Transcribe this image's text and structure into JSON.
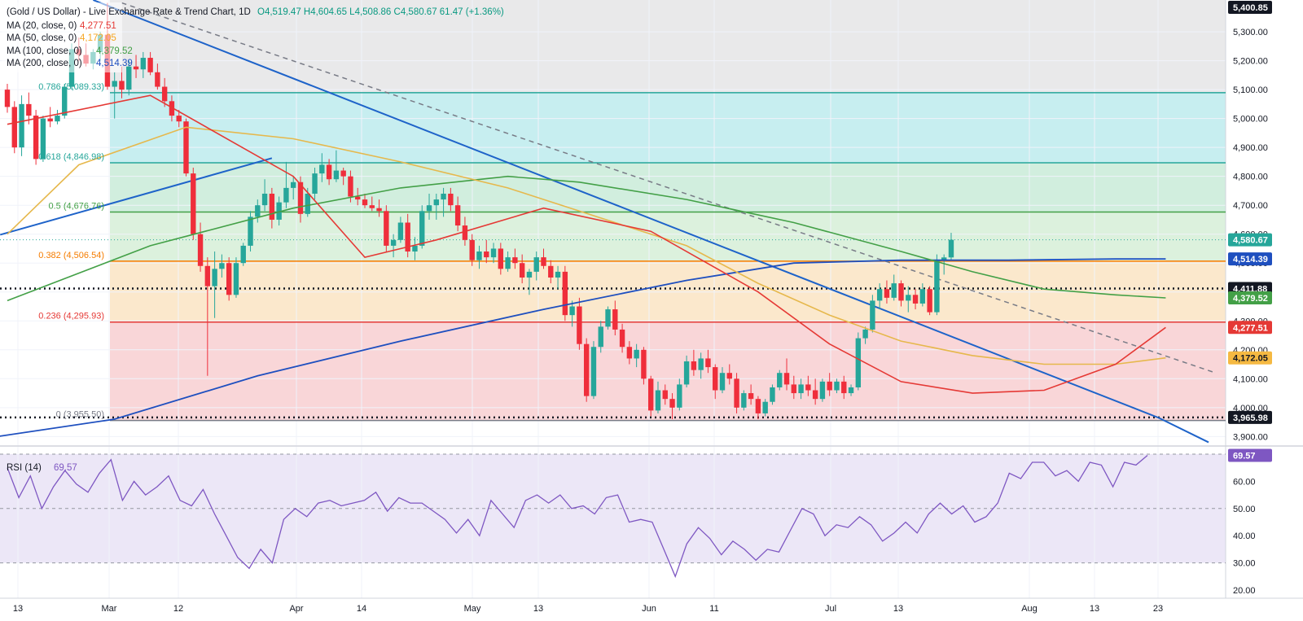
{
  "legend": {
    "title": "(Gold / US Dollar) - Live Exchange Rate & Trend Chart, 1D",
    "ohlc": "O4,519.47  H4,604.65  L4,508.86  C4,580.67  61.47 (+1.36%)",
    "ma20": {
      "label": "MA (20, close, 0)",
      "value": "4,277.51",
      "color": "#e53935"
    },
    "ma50": {
      "label": "MA (50, close, 0)",
      "value": "4,172.05",
      "color": "#f5a623"
    },
    "ma100": {
      "label": "MA (100, close, 0)",
      "value": "4,379.52",
      "color": "#43a047"
    },
    "ma200": {
      "label": "MA (200, close, 0)",
      "value": "4,514.39",
      "color": "#1e4fbf"
    }
  },
  "rsi_label": "RSI (14)",
  "rsi_value": "69.57",
  "chart_data": [
    {
      "type": "candlestick",
      "title": "(Gold / US Dollar) - Live Exchange Rate & Trend Chart, 1D",
      "x_ticks": [
        "13",
        "Mar",
        "12",
        "Apr",
        "14",
        "May",
        "13",
        "Jun",
        "11",
        "Jul",
        "13",
        "Aug",
        "13",
        "23"
      ],
      "y_ticks": [
        "3,900.00",
        "4,000.00",
        "4,100.00",
        "4,200.00",
        "4,300.00",
        "4,400.00",
        "4,500.00",
        "4,600.00",
        "4,700.00",
        "4,800.00",
        "4,900.00",
        "5,000.00",
        "5,100.00",
        "5,200.00",
        "5,300.00"
      ],
      "ylim": [
        3870,
        5410
      ],
      "last_ohlc": {
        "open": 4519.47,
        "high": 4604.65,
        "low": 4508.86,
        "close": 4580.67,
        "change": 61.47,
        "change_pct": "+1.36%"
      },
      "fib_levels": [
        {
          "label": "0.786 (5,089.33)",
          "value": 5089.33,
          "color": "#26a69a"
        },
        {
          "label": "0.618 (4,846.98)",
          "value": 4846.98,
          "color": "#26a69a"
        },
        {
          "label": "0.5 (4,676.76)",
          "value": 4676.76,
          "color": "#43a047"
        },
        {
          "label": "0.382 (4,506.54)",
          "value": 4506.54,
          "color": "#f57c00"
        },
        {
          "label": "0.236 (4,295.93)",
          "value": 4295.93,
          "color": "#e53935"
        },
        {
          "label": "0 (3,955.50)",
          "value": 3955.5,
          "color": "#787b86"
        }
      ],
      "horizontal_lines": [
        4411.88,
        3965.98
      ],
      "price_tags": [
        {
          "label": "5,400.85",
          "value": 5400.85,
          "bg": "#131722",
          "fg": "#ffffff"
        },
        {
          "label": "4,580.67",
          "value": 4580.67,
          "bg": "#26a69a",
          "fg": "#ffffff"
        },
        {
          "label": "4,514.39",
          "value": 4514.39,
          "bg": "#1e4fbf",
          "fg": "#ffffff"
        },
        {
          "label": "4,411.88",
          "value": 4411.88,
          "bg": "#131722",
          "fg": "#ffffff"
        },
        {
          "label": "4,379.52",
          "value": 4379.52,
          "bg": "#43a047",
          "fg": "#ffffff"
        },
        {
          "label": "4,277.51",
          "value": 4277.51,
          "bg": "#e53935",
          "fg": "#ffffff"
        },
        {
          "label": "4,172.05",
          "value": 4172.05,
          "bg": "#f5b942",
          "fg": "#131722"
        },
        {
          "label": "3,965.98",
          "value": 3965.98,
          "bg": "#131722",
          "fg": "#ffffff"
        }
      ],
      "candles": [
        [
          5100,
          5120,
          5020,
          5040
        ],
        [
          5040,
          5060,
          4880,
          4900
        ],
        [
          4900,
          5080,
          4870,
          5050
        ],
        [
          5050,
          5090,
          4980,
          5010
        ],
        [
          5010,
          5030,
          4840,
          4860
        ],
        [
          4860,
          5010,
          4850,
          5000
        ],
        [
          5000,
          5040,
          4970,
          4990
        ],
        [
          4990,
          5030,
          4980,
          5010
        ],
        [
          5010,
          5120,
          5000,
          5110
        ],
        [
          5110,
          5260,
          5100,
          5240
        ],
        [
          5240,
          5280,
          5200,
          5220
        ],
        [
          5220,
          5260,
          5180,
          5190
        ],
        [
          5190,
          5240,
          5170,
          5230
        ],
        [
          5230,
          5300,
          5200,
          5290
        ],
        [
          5290,
          5400,
          5100,
          5110
        ],
        [
          5110,
          5160,
          5000,
          5130
        ],
        [
          5130,
          5180,
          5070,
          5100
        ],
        [
          5100,
          5200,
          5080,
          5180
        ],
        [
          5180,
          5220,
          5140,
          5170
        ],
        [
          5170,
          5230,
          5140,
          5210
        ],
        [
          5210,
          5230,
          5150,
          5160
        ],
        [
          5160,
          5190,
          5100,
          5110
        ],
        [
          5110,
          5140,
          5040,
          5060
        ],
        [
          5060,
          5080,
          4990,
          5010
        ],
        [
          5010,
          5030,
          4970,
          4990
        ],
        [
          4990,
          5000,
          4800,
          4810
        ],
        [
          4810,
          4830,
          4580,
          4600
        ],
        [
          4600,
          4640,
          4470,
          4490
        ],
        [
          4490,
          4520,
          4110,
          4420
        ],
        [
          4420,
          4540,
          4310,
          4480
        ],
        [
          4480,
          4530,
          4450,
          4500
        ],
        [
          4500,
          4520,
          4370,
          4390
        ],
        [
          4390,
          4520,
          4380,
          4500
        ],
        [
          4500,
          4570,
          4490,
          4560
        ],
        [
          4560,
          4680,
          4540,
          4660
        ],
        [
          4660,
          4720,
          4640,
          4700
        ],
        [
          4700,
          4790,
          4680,
          4740
        ],
        [
          4740,
          4760,
          4620,
          4650
        ],
        [
          4650,
          4730,
          4630,
          4710
        ],
        [
          4710,
          4850,
          4690,
          4760
        ],
        [
          4760,
          4800,
          4720,
          4780
        ],
        [
          4780,
          4800,
          4640,
          4670
        ],
        [
          4670,
          4760,
          4660,
          4740
        ],
        [
          4740,
          4830,
          4720,
          4810
        ],
        [
          4810,
          4880,
          4780,
          4840
        ],
        [
          4840,
          4860,
          4770,
          4790
        ],
        [
          4790,
          4890,
          4780,
          4820
        ],
        [
          4820,
          4830,
          4770,
          4800
        ],
        [
          4800,
          4820,
          4710,
          4730
        ],
        [
          4730,
          4760,
          4700,
          4720
        ],
        [
          4720,
          4740,
          4690,
          4700
        ],
        [
          4700,
          4730,
          4680,
          4690
        ],
        [
          4690,
          4720,
          4660,
          4680
        ],
        [
          4680,
          4700,
          4540,
          4560
        ],
        [
          4560,
          4600,
          4520,
          4580
        ],
        [
          4580,
          4660,
          4570,
          4640
        ],
        [
          4640,
          4670,
          4520,
          4540
        ],
        [
          4540,
          4590,
          4510,
          4560
        ],
        [
          4560,
          4700,
          4550,
          4680
        ],
        [
          4680,
          4740,
          4650,
          4700
        ],
        [
          4700,
          4740,
          4650,
          4720
        ],
        [
          4720,
          4760,
          4660,
          4740
        ],
        [
          4740,
          4760,
          4680,
          4700
        ],
        [
          4700,
          4730,
          4610,
          4630
        ],
        [
          4630,
          4660,
          4560,
          4580
        ],
        [
          4580,
          4600,
          4490,
          4510
        ],
        [
          4510,
          4560,
          4480,
          4540
        ],
        [
          4540,
          4580,
          4500,
          4520
        ],
        [
          4520,
          4570,
          4500,
          4550
        ],
        [
          4550,
          4570,
          4460,
          4480
        ],
        [
          4480,
          4540,
          4470,
          4520
        ],
        [
          4520,
          4550,
          4480,
          4500
        ],
        [
          4500,
          4530,
          4430,
          4450
        ],
        [
          4450,
          4480,
          4390,
          4470
        ],
        [
          4470,
          4540,
          4440,
          4520
        ],
        [
          4520,
          4550,
          4480,
          4490
        ],
        [
          4490,
          4510,
          4430,
          4450
        ],
        [
          4450,
          4490,
          4410,
          4470
        ],
        [
          4470,
          4490,
          4300,
          4320
        ],
        [
          4320,
          4370,
          4280,
          4350
        ],
        [
          4350,
          4380,
          4200,
          4220
        ],
        [
          4220,
          4240,
          4020,
          4040
        ],
        [
          4040,
          4230,
          4030,
          4210
        ],
        [
          4210,
          4300,
          4190,
          4280
        ],
        [
          4280,
          4350,
          4270,
          4340
        ],
        [
          4340,
          4370,
          4250,
          4270
        ],
        [
          4270,
          4290,
          4190,
          4210
        ],
        [
          4210,
          4230,
          4150,
          4170
        ],
        [
          4170,
          4220,
          4140,
          4200
        ],
        [
          4200,
          4210,
          4080,
          4100
        ],
        [
          4100,
          4110,
          3970,
          3990
        ],
        [
          3990,
          4090,
          3980,
          4060
        ],
        [
          4060,
          4080,
          4010,
          4030
        ],
        [
          4030,
          4050,
          3960,
          4000
        ],
        [
          4000,
          4100,
          3990,
          4080
        ],
        [
          4080,
          4180,
          4070,
          4160
        ],
        [
          4160,
          4200,
          4110,
          4130
        ],
        [
          4130,
          4190,
          4100,
          4170
        ],
        [
          4170,
          4200,
          4120,
          4140
        ],
        [
          4140,
          4150,
          4030,
          4060
        ],
        [
          4060,
          4140,
          4050,
          4120
        ],
        [
          4120,
          4150,
          4080,
          4100
        ],
        [
          4100,
          4120,
          3980,
          4000
        ],
        [
          4000,
          4060,
          3990,
          4050
        ],
        [
          4050,
          4080,
          4010,
          4030
        ],
        [
          4030,
          4040,
          3960,
          3980
        ],
        [
          3980,
          4030,
          3970,
          4020
        ],
        [
          4020,
          4080,
          4010,
          4070
        ],
        [
          4070,
          4130,
          4060,
          4120
        ],
        [
          4120,
          4170,
          4060,
          4080
        ],
        [
          4080,
          4110,
          4030,
          4050
        ],
        [
          4050,
          4100,
          4030,
          4080
        ],
        [
          4080,
          4110,
          4040,
          4060
        ],
        [
          4060,
          4100,
          4010,
          4030
        ],
        [
          4030,
          4100,
          4020,
          4090
        ],
        [
          4090,
          4120,
          4040,
          4060
        ],
        [
          4060,
          4100,
          4050,
          4090
        ],
        [
          4090,
          4110,
          4030,
          4050
        ],
        [
          4050,
          4080,
          4040,
          4070
        ],
        [
          4070,
          4260,
          4060,
          4240
        ],
        [
          4240,
          4280,
          4220,
          4270
        ],
        [
          4270,
          4390,
          4260,
          4370
        ],
        [
          4370,
          4430,
          4340,
          4410
        ],
        [
          4410,
          4440,
          4360,
          4380
        ],
        [
          4380,
          4460,
          4370,
          4430
        ],
        [
          4430,
          4440,
          4350,
          4370
        ],
        [
          4370,
          4420,
          4330,
          4390
        ],
        [
          4390,
          4410,
          4340,
          4360
        ],
        [
          4360,
          4430,
          4350,
          4410
        ],
        [
          4410,
          4420,
          4320,
          4330
        ],
        [
          4330,
          4530,
          4320,
          4510
        ],
        [
          4510,
          4530,
          4460,
          4519.47
        ],
        [
          4519.47,
          4604.65,
          4508.86,
          4580.67
        ]
      ],
      "ma20": [
        [
          0,
          4980
        ],
        [
          20,
          5080
        ],
        [
          40,
          4800
        ],
        [
          50,
          4520
        ],
        [
          60,
          4580
        ],
        [
          75,
          4690
        ],
        [
          90,
          4610
        ],
        [
          105,
          4400
        ],
        [
          115,
          4220
        ],
        [
          125,
          4090
        ],
        [
          135,
          4050
        ],
        [
          145,
          4060
        ],
        [
          155,
          4150
        ],
        [
          162,
          4277.51
        ]
      ],
      "ma50": [
        [
          0,
          4600
        ],
        [
          10,
          4840
        ],
        [
          25,
          4970
        ],
        [
          40,
          4930
        ],
        [
          55,
          4850
        ],
        [
          70,
          4760
        ],
        [
          85,
          4640
        ],
        [
          95,
          4560
        ],
        [
          105,
          4430
        ],
        [
          115,
          4320
        ],
        [
          125,
          4230
        ],
        [
          135,
          4180
        ],
        [
          145,
          4150
        ],
        [
          155,
          4150
        ],
        [
          162,
          4172.05
        ]
      ],
      "ma100": [
        [
          0,
          4370
        ],
        [
          20,
          4560
        ],
        [
          40,
          4690
        ],
        [
          55,
          4760
        ],
        [
          70,
          4800
        ],
        [
          80,
          4780
        ],
        [
          95,
          4720
        ],
        [
          110,
          4640
        ],
        [
          125,
          4540
        ],
        [
          135,
          4470
        ],
        [
          145,
          4410
        ],
        [
          155,
          4390
        ],
        [
          162,
          4379.52
        ]
      ],
      "ma200": [
        [
          -15,
          3850
        ],
        [
          15,
          3960
        ],
        [
          35,
          4110
        ],
        [
          55,
          4230
        ],
        [
          75,
          4340
        ],
        [
          95,
          4440
        ],
        [
          110,
          4500
        ],
        [
          125,
          4510
        ],
        [
          140,
          4510
        ],
        [
          155,
          4514.39
        ],
        [
          162,
          4514.39
        ]
      ],
      "rsi": [
        65,
        54,
        62,
        50,
        58,
        64,
        59,
        56,
        63,
        68,
        53,
        60,
        55,
        58,
        62,
        53,
        51,
        57,
        48,
        40,
        32,
        28,
        35,
        30,
        46,
        50,
        47,
        52,
        53,
        51,
        52,
        53,
        56,
        49,
        54,
        52,
        52,
        49,
        46,
        41,
        46,
        40,
        53,
        48,
        43,
        53,
        55,
        52,
        55,
        50,
        51,
        48,
        54,
        55,
        45,
        46,
        45,
        35,
        25,
        37,
        43,
        39,
        33,
        38,
        35,
        31,
        35,
        34,
        42,
        50,
        48,
        40,
        44,
        43,
        47,
        44,
        38,
        41,
        45,
        41,
        48,
        52,
        48,
        51,
        45,
        47,
        52,
        63,
        61,
        67,
        67,
        62,
        64,
        60,
        67,
        66,
        58,
        67,
        66,
        69.57
      ],
      "rsi_ylim": [
        17,
        73
      ],
      "rsi_ticks": [
        "20.00",
        "30.00",
        "40.00",
        "50.00",
        "60.00"
      ],
      "rsi_levels": [
        30,
        50,
        70
      ]
    }
  ]
}
